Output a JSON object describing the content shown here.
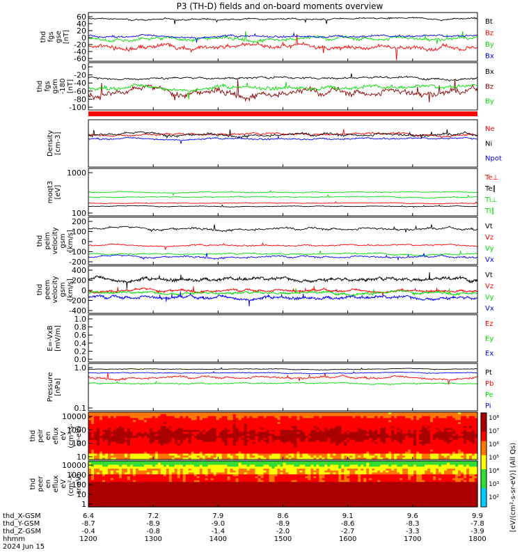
{
  "title": "P3 (TH-D) fields and on-board moments overview",
  "colors": {
    "black": "#000000",
    "red": "#ff0000",
    "green": "#00dd00",
    "blue": "#0000ff",
    "darkred": "#8b0000"
  },
  "chart_data": [
    {
      "type": "line",
      "ylabel": [
        "thd",
        "fgs",
        "gse",
        "[nT]"
      ],
      "ylim": [
        -65,
        65
      ],
      "ticks": [
        "60",
        "40",
        "20",
        "0",
        "-20",
        "-40",
        "-60"
      ],
      "series": [
        {
          "name": "Bt",
          "color": "black",
          "level": 48,
          "noise": 6
        },
        {
          "name": "Bz",
          "color": "red",
          "level": -25,
          "noise": 18
        },
        {
          "name": "By",
          "color": "green",
          "level": -5,
          "noise": 14
        },
        {
          "name": "Bx",
          "color": "blue",
          "level": 2,
          "noise": 8
        }
      ]
    },
    {
      "type": "line",
      "ylabel": [
        "thd",
        "fgs",
        "gsm",
        "-180",
        "[nT]"
      ],
      "ylim": [
        -110,
        15
      ],
      "ticks": [
        "0",
        "-20",
        "-40",
        "-60",
        "-80",
        "-100"
      ],
      "series": [
        {
          "name": "Bx",
          "color": "black",
          "level": -25,
          "noise": 8
        },
        {
          "name": "Bz",
          "color": "darkred",
          "level": -65,
          "noise": 25
        },
        {
          "name": "By",
          "color": "green",
          "level": -50,
          "noise": 15
        }
      ]
    },
    {
      "type": "line",
      "ylabel": [
        "Density",
        "[cm-3]"
      ],
      "scale": "log",
      "ticks": [],
      "series": [
        {
          "name": "Ne",
          "color": "red",
          "level": 0.7,
          "noise": 0.07
        },
        {
          "name": "Ni",
          "color": "black",
          "level": 0.68,
          "noise": 0.08
        },
        {
          "name": "Npot",
          "color": "blue",
          "level": 0.6,
          "noise": 0.05
        }
      ]
    },
    {
      "type": "line",
      "ylabel": [
        "moqt3",
        "[eV]"
      ],
      "scale": "log",
      "ticks": [
        "1000",
        "100"
      ],
      "series": [
        {
          "name": "Te⊥",
          "color": "red",
          "level": 0.27,
          "noise": 0.02
        },
        {
          "name": "Te∥",
          "color": "black",
          "level": 0.2,
          "noise": 0.02
        },
        {
          "name": "Ti⊥",
          "color": "green",
          "level": 0.5,
          "noise": 0.03
        },
        {
          "name": "Ti∥",
          "color": "green",
          "level": 0.4,
          "noise": 0.03
        }
      ]
    },
    {
      "type": "line",
      "ylabel": [
        "thd",
        "peim",
        "velocity",
        "gsm",
        "[km/s]"
      ],
      "ylim": [
        -180,
        260
      ],
      "ticks": [
        "200",
        "100",
        "0",
        "-100",
        "-200"
      ],
      "series": [
        {
          "name": "Vt",
          "color": "black",
          "level": 150,
          "noise": 30
        },
        {
          "name": "Vz",
          "color": "red",
          "level": 0,
          "noise": 20
        },
        {
          "name": "Vy",
          "color": "green",
          "level": -80,
          "noise": 20
        },
        {
          "name": "Vx",
          "color": "blue",
          "level": -110,
          "noise": 25
        }
      ]
    },
    {
      "type": "line",
      "ylabel": [
        "thd",
        "peem",
        "velocity",
        "gsm",
        "[km/s]"
      ],
      "ylim": [
        -450,
        450
      ],
      "ticks": [
        "400",
        "200",
        "0",
        "-200",
        "-400"
      ],
      "series": [
        {
          "name": "Vt",
          "color": "black",
          "level": 200,
          "noise": 90
        },
        {
          "name": "Vz",
          "color": "red",
          "level": -20,
          "noise": 60
        },
        {
          "name": "Vy",
          "color": "green",
          "level": -60,
          "noise": 60
        },
        {
          "name": "Vx",
          "color": "blue",
          "level": -150,
          "noise": 80
        }
      ]
    },
    {
      "type": "line",
      "ylabel": [
        "E=-VxB",
        "[mV/m]"
      ],
      "ylim": [
        -0.1,
        1.05
      ],
      "ticks": [
        "1.0",
        "0.8",
        "0.6",
        "0.4",
        "0.2",
        "0.0"
      ],
      "series": [
        {
          "name": "Ez",
          "color": "red"
        },
        {
          "name": "Ey",
          "color": "green"
        },
        {
          "name": "Ex",
          "color": "blue"
        }
      ]
    },
    {
      "type": "line",
      "ylabel": [
        "Pressure",
        "[nPa]"
      ],
      "scale": "log",
      "ticks": [
        "1.0",
        "0.1"
      ],
      "series": [
        {
          "name": "Pt",
          "color": "black",
          "level": 0.88,
          "noise": 0.02
        },
        {
          "name": "Pb",
          "color": "red",
          "level": 0.7,
          "noise": 0.07
        },
        {
          "name": "Pe",
          "color": "green",
          "level": 0.58,
          "noise": 0.04
        },
        {
          "name": "Pi",
          "color": "blue",
          "level": 0.8,
          "noise": 0.02
        }
      ]
    },
    {
      "type": "heatmap",
      "ylabel": [
        "thd",
        "peir",
        "en",
        "eflux",
        "eV",
        "(cm²-s-",
        "sr-eV)"
      ],
      "scale": "log",
      "ticks": [
        "10000",
        "1000",
        "100",
        "10"
      ]
    },
    {
      "type": "heatmap",
      "ylabel": [
        "thd",
        "peer",
        "en",
        "eflux",
        "eV",
        "(cm²-s-",
        "sr-eV)"
      ],
      "scale": "log",
      "ticks": [
        "10000",
        "1000",
        "100",
        "10",
        "1"
      ]
    }
  ],
  "legends": {
    "p0": [
      "Bt",
      "Bz",
      "By",
      "Bx"
    ],
    "p1": [
      "Bx",
      "Bz",
      "By"
    ],
    "p2": [
      "Ne",
      "Ni",
      "Npot"
    ],
    "p3": [
      "Te⊥",
      "Te∥",
      "Ti⊥",
      "Ti∥"
    ],
    "p4": [
      "Vt",
      "Vz",
      "Vy",
      "Vx"
    ],
    "p5": [
      "Vt",
      "Vz",
      "Vy",
      "Vx"
    ],
    "p6": [
      "Ez",
      "Ey",
      "Ex"
    ],
    "p7": [
      "Pt",
      "Pb",
      "Pe",
      "Pi"
    ]
  },
  "colorbar": {
    "ticks": [
      "10⁸",
      "10⁷",
      "10⁶",
      "10⁵",
      "10⁴",
      "10³",
      "10²"
    ],
    "label": "[eV/(cm²-s-sr-eV)]  (All Qs)"
  },
  "xaxis": {
    "row_labels": [
      "thd_X-GSM",
      "thd_Y-GSM",
      "thd_Z-GSM",
      "hhmm",
      "2024 Jun 15"
    ],
    "columns": [
      [
        "6.4",
        "-8.7",
        "-0.4",
        "1200"
      ],
      [
        "7.2",
        "-8.9",
        "-0.8",
        "1300"
      ],
      [
        "7.9",
        "-9.0",
        "-1.4",
        "1400"
      ],
      [
        "8.6",
        "-8.9",
        "-2.0",
        "1500"
      ],
      [
        "9.1",
        "-8.6",
        "-2.7",
        "1600"
      ],
      [
        "9.6",
        "-8.3",
        "-3.3",
        "1700"
      ],
      [
        "9.9",
        "-7.8",
        "-3.9",
        "1800"
      ]
    ]
  }
}
